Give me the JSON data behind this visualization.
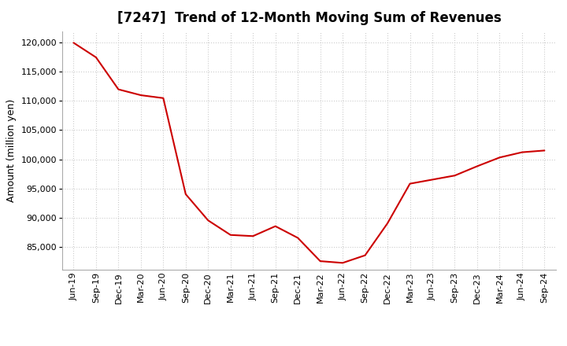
{
  "title": "[7247]  Trend of 12-Month Moving Sum of Revenues",
  "ylabel": "Amount (million yen)",
  "background_color": "#ffffff",
  "plot_bg_color": "#ffffff",
  "grid_color": "#cccccc",
  "line_color": "#cc0000",
  "x_labels": [
    "Jun-19",
    "Sep-19",
    "Dec-19",
    "Mar-20",
    "Jun-20",
    "Sep-20",
    "Dec-20",
    "Mar-21",
    "Jun-21",
    "Sep-21",
    "Dec-21",
    "Mar-22",
    "Jun-22",
    "Sep-22",
    "Dec-22",
    "Mar-23",
    "Jun-23",
    "Sep-23",
    "Dec-23",
    "Mar-24",
    "Jun-24",
    "Sep-24"
  ],
  "values": [
    120000,
    117500,
    112000,
    111000,
    110500,
    94000,
    89500,
    87000,
    86800,
    88500,
    86500,
    82500,
    82200,
    83500,
    89000,
    95800,
    96500,
    97200,
    98800,
    100300,
    101200,
    101500
  ],
  "ylim": [
    81000,
    122000
  ],
  "yticks": [
    85000,
    90000,
    95000,
    100000,
    105000,
    110000,
    115000,
    120000
  ],
  "title_fontsize": 12,
  "label_fontsize": 9,
  "tick_fontsize": 8
}
